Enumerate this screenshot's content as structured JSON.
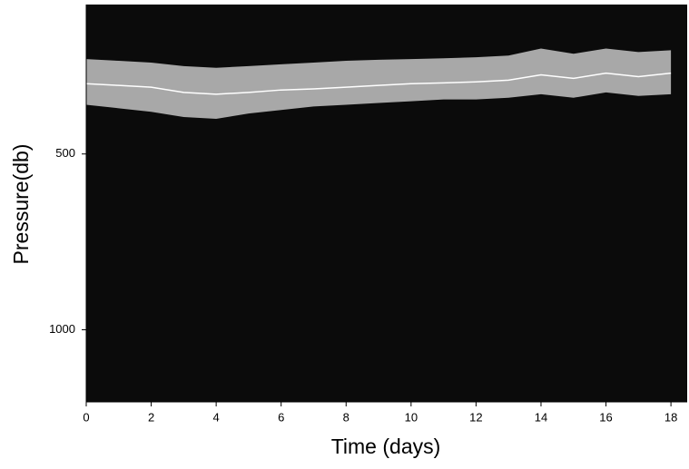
{
  "chart_data": {
    "type": "contour-line",
    "x_label": "Time (days)",
    "y_label": "Pressure(db)",
    "x": [
      0,
      1,
      2,
      3,
      4,
      5,
      6,
      7,
      8,
      9,
      10,
      11,
      12,
      13,
      14,
      15,
      16,
      17,
      18
    ],
    "values": [
      300,
      305,
      310,
      325,
      330,
      325,
      318,
      315,
      310,
      305,
      300,
      298,
      295,
      290,
      275,
      285,
      270,
      280,
      270
    ],
    "band": {
      "top": [
        230,
        235,
        240,
        250,
        255,
        250,
        245,
        240,
        235,
        232,
        230,
        228,
        225,
        220,
        200,
        215,
        200,
        210,
        205
      ],
      "bottom": [
        360,
        370,
        380,
        395,
        400,
        385,
        375,
        365,
        360,
        355,
        350,
        345,
        345,
        340,
        330,
        340,
        325,
        335,
        330
      ]
    },
    "color": "#ffffff",
    "band_color": "#a8a8a8",
    "field_color": "#0b0b0b",
    "xlim": [
      0,
      18.5
    ],
    "xticks": [
      0,
      2,
      4,
      6,
      8,
      10,
      12,
      14,
      16,
      18
    ],
    "ylim": [
      1205,
      75
    ],
    "yticks": [
      500,
      1000
    ]
  }
}
